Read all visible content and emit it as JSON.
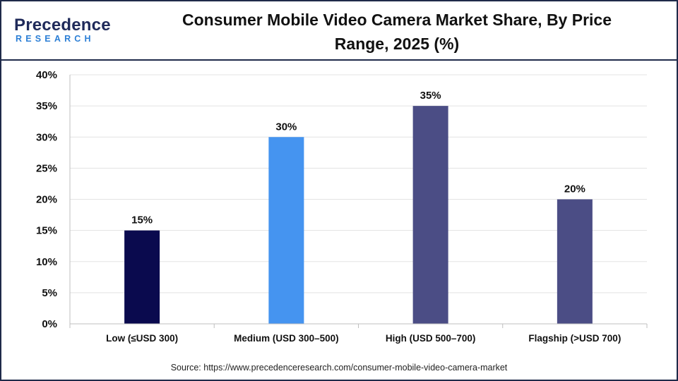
{
  "brand": {
    "name": "Precedence",
    "sub": "RESEARCH"
  },
  "title_line1": "Consumer Mobile Video Camera Market Share, By Price",
  "title_line2": "Range, 2025 (%)",
  "source": "Source: https://www.precedenceresearch.com/consumer-mobile-video-camera-market",
  "chart_data": {
    "type": "bar",
    "title": "Consumer Mobile Video Camera Market Share, By Price Range, 2025 (%)",
    "categories": [
      "Low (≤USD 300)",
      "Medium (USD 300–500)",
      "High (USD 500–700)",
      "Flagship (>USD 700)"
    ],
    "values": [
      15,
      30,
      35,
      20
    ],
    "value_labels": [
      "15%",
      "30%",
      "35%",
      "20%"
    ],
    "colors": [
      "#0a0a4e",
      "#4594f0",
      "#4b4d85",
      "#4b4d85"
    ],
    "ylim": [
      0,
      40
    ],
    "yticks": [
      0,
      5,
      10,
      15,
      20,
      25,
      30,
      35,
      40
    ],
    "ytick_labels": [
      "0%",
      "5%",
      "10%",
      "15%",
      "20%",
      "25%",
      "30%",
      "35%",
      "40%"
    ],
    "grid": true,
    "legend": "none",
    "xlabel": "",
    "ylabel": ""
  }
}
